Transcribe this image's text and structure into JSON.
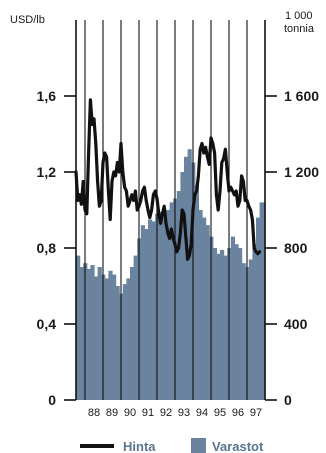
{
  "chart_data": {
    "type": "bar+line",
    "title": "",
    "left_axis": {
      "label": "USD/lb",
      "ticks": [
        "0",
        "0,4",
        "0,8",
        "1,2",
        "1,6"
      ],
      "ylim": [
        0,
        2.0
      ]
    },
    "right_axis": {
      "label_line1": "1 000",
      "label_line2": "tonnia",
      "ticks": [
        "0",
        "400",
        "800",
        "1 200",
        "1 600"
      ],
      "ylim": [
        0,
        2000
      ]
    },
    "x_labels": [
      "88",
      "89",
      "90",
      "91",
      "92",
      "93",
      "94",
      "95",
      "96",
      "97"
    ],
    "x_range": [
      1987.5,
      1998.0
    ],
    "grid": "vertical",
    "legend_position": "bottom",
    "legend": {
      "line_label": "Hinta",
      "bar_label": "Varastot"
    },
    "colors": {
      "line": "#111111",
      "bars": "#6a84a0",
      "legend_text": "#5a7590",
      "axis": "#111111"
    },
    "series": [
      {
        "name": "Varastot",
        "type": "bar",
        "axis": "right",
        "x": [
          1987.5,
          1987.7,
          1987.9,
          1988.1,
          1988.3,
          1988.5,
          1988.7,
          1988.9,
          1989.1,
          1989.3,
          1989.5,
          1989.7,
          1989.9,
          1990.1,
          1990.3,
          1990.5,
          1990.7,
          1990.9,
          1991.1,
          1991.3,
          1991.5,
          1991.7,
          1991.9,
          1992.1,
          1992.3,
          1992.5,
          1992.7,
          1992.9,
          1993.1,
          1993.3,
          1993.5,
          1993.7,
          1993.9,
          1994.1,
          1994.3,
          1994.5,
          1994.7,
          1994.9,
          1995.1,
          1995.3,
          1995.5,
          1995.7,
          1995.9,
          1996.1,
          1996.3,
          1996.5,
          1996.7,
          1996.9,
          1997.1,
          1997.3,
          1997.5,
          1997.7
        ],
        "values": [
          760,
          700,
          720,
          690,
          710,
          650,
          700,
          660,
          640,
          680,
          660,
          600,
          560,
          610,
          640,
          700,
          760,
          850,
          920,
          900,
          950,
          940,
          980,
          990,
          960,
          1000,
          1040,
          1060,
          1100,
          1200,
          1280,
          1320,
          1250,
          1130,
          1000,
          960,
          920,
          860,
          800,
          770,
          790,
          760,
          800,
          860,
          820,
          800,
          720,
          700,
          740,
          820,
          960,
          1040
        ]
      },
      {
        "name": "Hinta",
        "type": "line",
        "axis": "left",
        "x": [
          1987.5,
          1987.6,
          1987.7,
          1987.8,
          1987.9,
          1988.0,
          1988.1,
          1988.2,
          1988.3,
          1988.4,
          1988.5,
          1988.6,
          1988.7,
          1988.8,
          1988.9,
          1989.0,
          1989.1,
          1989.2,
          1989.3,
          1989.4,
          1989.5,
          1989.6,
          1989.7,
          1989.8,
          1989.9,
          1990.0,
          1990.1,
          1990.2,
          1990.3,
          1990.4,
          1990.5,
          1990.6,
          1990.7,
          1990.8,
          1990.9,
          1991.0,
          1991.1,
          1991.2,
          1991.3,
          1991.4,
          1991.5,
          1991.6,
          1991.7,
          1991.8,
          1991.9,
          1992.0,
          1992.1,
          1992.2,
          1992.3,
          1992.4,
          1992.5,
          1992.6,
          1992.7,
          1992.8,
          1992.9,
          1993.0,
          1993.1,
          1993.2,
          1993.3,
          1993.4,
          1993.5,
          1993.6,
          1993.7,
          1993.8,
          1993.9,
          1994.0,
          1994.1,
          1994.2,
          1994.3,
          1994.4,
          1994.5,
          1994.6,
          1994.7,
          1994.8,
          1994.9,
          1995.0,
          1995.1,
          1995.2,
          1995.3,
          1995.4,
          1995.5,
          1995.6,
          1995.7,
          1995.8,
          1995.9,
          1996.0,
          1996.1,
          1996.2,
          1996.3,
          1996.4,
          1996.5,
          1996.6,
          1996.7,
          1996.8,
          1996.9,
          1997.0,
          1997.1,
          1997.2,
          1997.3,
          1997.4,
          1997.5,
          1997.6,
          1997.7
        ],
        "values": [
          1.2,
          1.05,
          1.08,
          1.03,
          1.15,
          1.0,
          0.98,
          1.3,
          1.58,
          1.45,
          1.48,
          1.35,
          1.15,
          1.02,
          1.05,
          1.25,
          1.3,
          1.28,
          1.1,
          0.95,
          1.15,
          1.2,
          1.18,
          1.25,
          1.2,
          1.35,
          1.2,
          1.12,
          1.1,
          1.02,
          1.05,
          1.08,
          1.05,
          1.1,
          1.0,
          1.02,
          1.05,
          1.1,
          1.12,
          1.05,
          1.0,
          0.96,
          1.0,
          1.08,
          1.1,
          1.06,
          0.98,
          0.93,
          0.98,
          1.02,
          0.93,
          0.88,
          0.85,
          0.9,
          0.85,
          0.82,
          0.78,
          0.8,
          0.88,
          1.0,
          0.98,
          0.86,
          0.74,
          0.76,
          0.82,
          1.0,
          1.08,
          1.1,
          1.18,
          1.32,
          1.35,
          1.3,
          1.33,
          1.28,
          1.24,
          1.38,
          1.35,
          1.3,
          1.08,
          1.0,
          1.1,
          1.25,
          1.27,
          1.32,
          1.2,
          1.1,
          1.12,
          1.1,
          1.08,
          1.1,
          1.02,
          1.05,
          1.18,
          1.15,
          1.05,
          1.05,
          1.02,
          1.0,
          0.95,
          0.8,
          0.78,
          0.77,
          0.78
        ]
      }
    ]
  }
}
